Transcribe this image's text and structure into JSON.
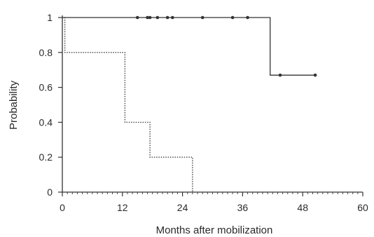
{
  "chart_data": {
    "type": "line",
    "chart_style": "step (Kaplan-Meier survival curves)",
    "xlabel": "Months after mobilization",
    "ylabel": "Probability",
    "xlim": [
      0,
      60
    ],
    "ylim": [
      0,
      1
    ],
    "x_ticks": [
      0,
      12,
      24,
      36,
      48,
      60
    ],
    "y_ticks": [
      0,
      0.2,
      0.4,
      0.6,
      0.8,
      1
    ],
    "x_minor_tick_step": 1,
    "grid": false,
    "legend": "none",
    "series": [
      {
        "line_style": "solid",
        "color": "#333333",
        "steps": [
          {
            "x": 0,
            "y": 1
          },
          {
            "x": 41.5,
            "y": 0.67
          },
          {
            "x": 50.5,
            "y": 0.67
          }
        ],
        "censored_marks": [
          {
            "x": 15,
            "y": 1
          },
          {
            "x": 17,
            "y": 1
          },
          {
            "x": 17.5,
            "y": 1
          },
          {
            "x": 19,
            "y": 1
          },
          {
            "x": 21,
            "y": 1
          },
          {
            "x": 22,
            "y": 1
          },
          {
            "x": 28,
            "y": 1
          },
          {
            "x": 34,
            "y": 1
          },
          {
            "x": 37,
            "y": 1
          },
          {
            "x": 43.5,
            "y": 0.67
          },
          {
            "x": 50.5,
            "y": 0.67
          }
        ]
      },
      {
        "line_style": "dotted",
        "color": "#444444",
        "steps": [
          {
            "x": 0,
            "y": 1
          },
          {
            "x": 0.5,
            "y": 0.8
          },
          {
            "x": 12.5,
            "y": 0.4
          },
          {
            "x": 17.5,
            "y": 0.2
          },
          {
            "x": 26,
            "y": 0
          }
        ],
        "censored_marks": []
      }
    ]
  }
}
